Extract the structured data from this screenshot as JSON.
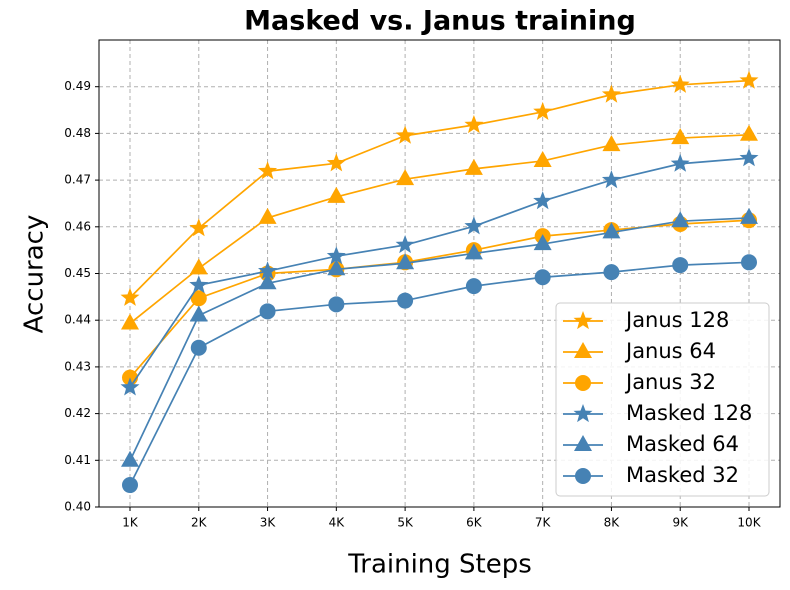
{
  "chart_data": {
    "type": "line",
    "title": "Masked vs. Janus training",
    "x_label": "Training Steps",
    "y_label": "Accuracy",
    "categories": [
      "1K",
      "2K",
      "3K",
      "4K",
      "5K",
      "6K",
      "7K",
      "8K",
      "9K",
      "10K"
    ],
    "series": [
      {
        "name": "Janus 128",
        "color": "#ffa500",
        "marker": "star",
        "values": [
          0.4448,
          0.4597,
          0.4719,
          0.4736,
          0.4795,
          0.4818,
          0.4846,
          0.4883,
          0.4904,
          0.4913
        ]
      },
      {
        "name": "Janus 64",
        "color": "#ffa500",
        "marker": "triangle",
        "values": [
          0.4393,
          0.4511,
          0.4619,
          0.4664,
          0.4702,
          0.4724,
          0.4741,
          0.4775,
          0.479,
          0.4797
        ]
      },
      {
        "name": "Janus 32",
        "color": "#ffa500",
        "marker": "circle",
        "values": [
          0.4277,
          0.4447,
          0.45,
          0.4509,
          0.4524,
          0.455,
          0.458,
          0.4593,
          0.4606,
          0.4614
        ]
      },
      {
        "name": "Masked 128",
        "color": "#4682b4",
        "marker": "star",
        "values": [
          0.4256,
          0.4475,
          0.4505,
          0.4537,
          0.4561,
          0.4601,
          0.4655,
          0.47,
          0.4735,
          0.4747
        ]
      },
      {
        "name": "Masked 64",
        "color": "#4682b4",
        "marker": "triangle",
        "values": [
          0.4099,
          0.441,
          0.4479,
          0.4509,
          0.4522,
          0.4543,
          0.4563,
          0.4588,
          0.4612,
          0.4619
        ]
      },
      {
        "name": "Masked 32",
        "color": "#4682b4",
        "marker": "circle",
        "values": [
          0.4047,
          0.4341,
          0.4419,
          0.4434,
          0.4442,
          0.4473,
          0.4492,
          0.4503,
          0.4518,
          0.4524
        ]
      }
    ],
    "ylim": [
      0.4,
      0.5
    ],
    "yticks": [
      {
        "value": 0.4,
        "label": "0.40"
      },
      0.41,
      0.42,
      0.43,
      0.44,
      0.45,
      0.46,
      0.47,
      0.48,
      0.49
    ],
    "grid": true,
    "legend": "lower right"
  }
}
